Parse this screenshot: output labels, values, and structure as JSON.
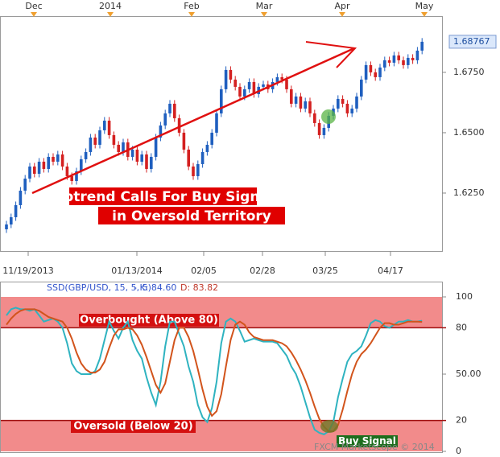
{
  "chart_data": [
    {
      "type": "candlestick",
      "top_axis_labels": [
        "Dec",
        "2014",
        "Feb",
        "Mar",
        "Apr",
        "May"
      ],
      "x_labels": [
        "11/19/2013",
        "01/13/2014",
        "02/05",
        "02/28",
        "03/25",
        "04/17"
      ],
      "open": [
        1.61,
        1.612,
        1.615,
        1.62,
        1.626,
        1.631,
        1.636,
        1.633,
        1.638,
        1.635,
        1.64,
        1.638,
        1.641,
        1.636,
        1.632,
        1.63,
        1.634,
        1.639,
        1.642,
        1.648,
        1.645,
        1.651,
        1.655,
        1.649,
        1.645,
        1.642,
        1.646,
        1.64,
        1.643,
        1.638,
        1.641,
        1.635,
        1.64,
        1.648,
        1.653,
        1.658,
        1.662,
        1.656,
        1.65,
        1.643,
        1.636,
        1.632,
        1.637,
        1.642,
        1.645,
        1.65,
        1.658,
        1.668,
        1.676,
        1.672,
        1.669,
        1.665,
        1.668,
        1.671,
        1.666,
        1.669,
        1.67,
        1.668,
        1.671,
        1.673,
        1.672,
        1.668,
        1.662,
        1.665,
        1.66,
        1.663,
        1.658,
        1.654,
        1.649,
        1.652,
        1.657,
        1.66,
        1.664,
        1.662,
        1.658,
        1.66,
        1.665,
        1.672,
        1.678,
        1.675,
        1.673,
        1.677,
        1.68,
        1.679,
        1.682,
        1.68,
        1.678,
        1.681,
        1.68,
        1.684
      ],
      "high": [
        1.6135,
        1.6165,
        1.6215,
        1.6275,
        1.6325,
        1.6375,
        1.6375,
        1.6395,
        1.6395,
        1.6415,
        1.6415,
        1.6425,
        1.6425,
        1.6375,
        1.6335,
        1.6355,
        1.6405,
        1.6435,
        1.6495,
        1.6495,
        1.6525,
        1.6565,
        1.6565,
        1.6505,
        1.6465,
        1.6475,
        1.6475,
        1.6445,
        1.6445,
        1.6425,
        1.6425,
        1.6415,
        1.6495,
        1.6545,
        1.6595,
        1.6635,
        1.6635,
        1.6575,
        1.6515,
        1.6445,
        1.6375,
        1.6385,
        1.6435,
        1.6465,
        1.6515,
        1.6595,
        1.6695,
        1.6775,
        1.6775,
        1.6735,
        1.6705,
        1.6695,
        1.6725,
        1.6725,
        1.6705,
        1.6715,
        1.6715,
        1.6725,
        1.6745,
        1.6745,
        1.6735,
        1.6695,
        1.6665,
        1.6665,
        1.6645,
        1.6645,
        1.6595,
        1.6555,
        1.6535,
        1.6585,
        1.6615,
        1.6655,
        1.6655,
        1.6635,
        1.6615,
        1.6665,
        1.6735,
        1.6795,
        1.6795,
        1.6765,
        1.6785,
        1.6815,
        1.6815,
        1.6835,
        1.6835,
        1.6815,
        1.6825,
        1.6825,
        1.6855,
        1.6892
      ],
      "low": [
        1.6085,
        1.6105,
        1.6135,
        1.6185,
        1.6245,
        1.6295,
        1.6315,
        1.6315,
        1.6335,
        1.6335,
        1.6365,
        1.6365,
        1.6345,
        1.6305,
        1.6285,
        1.6285,
        1.6325,
        1.6375,
        1.6405,
        1.6435,
        1.6435,
        1.6495,
        1.6475,
        1.6435,
        1.6405,
        1.6405,
        1.6385,
        1.6385,
        1.6365,
        1.6365,
        1.6335,
        1.6335,
        1.6385,
        1.6465,
        1.6515,
        1.6565,
        1.6545,
        1.6485,
        1.6415,
        1.6345,
        1.6305,
        1.6305,
        1.6355,
        1.6405,
        1.6435,
        1.6485,
        1.6565,
        1.6665,
        1.6705,
        1.6675,
        1.6635,
        1.6635,
        1.6665,
        1.6645,
        1.6645,
        1.6675,
        1.6665,
        1.6665,
        1.6695,
        1.6705,
        1.6665,
        1.6605,
        1.6605,
        1.6585,
        1.6585,
        1.6565,
        1.6525,
        1.6475,
        1.6475,
        1.6505,
        1.6555,
        1.6585,
        1.6605,
        1.6565,
        1.6565,
        1.6585,
        1.6635,
        1.6705,
        1.6735,
        1.6715,
        1.6715,
        1.6755,
        1.6775,
        1.6775,
        1.6785,
        1.6765,
        1.6765,
        1.6785,
        1.6785,
        1.6825
      ],
      "close": [
        1.612,
        1.615,
        1.62,
        1.626,
        1.631,
        1.636,
        1.633,
        1.638,
        1.635,
        1.64,
        1.638,
        1.641,
        1.636,
        1.632,
        1.63,
        1.634,
        1.639,
        1.642,
        1.648,
        1.645,
        1.651,
        1.655,
        1.649,
        1.645,
        1.642,
        1.646,
        1.64,
        1.643,
        1.638,
        1.641,
        1.635,
        1.64,
        1.648,
        1.653,
        1.658,
        1.662,
        1.656,
        1.65,
        1.643,
        1.636,
        1.632,
        1.637,
        1.642,
        1.645,
        1.65,
        1.658,
        1.668,
        1.676,
        1.672,
        1.669,
        1.665,
        1.668,
        1.671,
        1.666,
        1.669,
        1.67,
        1.668,
        1.671,
        1.673,
        1.672,
        1.668,
        1.662,
        1.665,
        1.66,
        1.663,
        1.658,
        1.654,
        1.649,
        1.652,
        1.657,
        1.66,
        1.664,
        1.662,
        1.658,
        1.66,
        1.665,
        1.672,
        1.678,
        1.675,
        1.673,
        1.677,
        1.68,
        1.679,
        1.682,
        1.68,
        1.678,
        1.681,
        1.68,
        1.684,
        1.68767
      ],
      "up_color": "#1f5fbf",
      "down_color": "#d42020",
      "ylim": [
        1.601,
        1.6983
      ],
      "yticks": [
        {
          "value": 1.675,
          "label": "1.6750"
        },
        {
          "value": 1.65,
          "label": "1.6500"
        },
        {
          "value": 1.625,
          "label": "1.6250"
        }
      ],
      "annotations": [
        "Uptrend Calls For Buy Signal",
        "in Oversold Territory"
      ]
    },
    {
      "type": "line",
      "title": "SSD(GBP/USD, 15, 5, 5)",
      "readouts": [
        "- K: 84.60",
        "D: 83.82"
      ],
      "series": [
        {
          "color": "#2fb3c0",
          "values": [
            88,
            92,
            93,
            92,
            92,
            91,
            92,
            88,
            84,
            85,
            86,
            84,
            80,
            70,
            57,
            52,
            50,
            50,
            50,
            52,
            60,
            72,
            84,
            78,
            73,
            80,
            84,
            72,
            65,
            60,
            48,
            38,
            30,
            45,
            68,
            84,
            84,
            76,
            68,
            55,
            45,
            30,
            22,
            19,
            28,
            45,
            70,
            84,
            86,
            84,
            78,
            71,
            72,
            73,
            72,
            71,
            71,
            71,
            70,
            66,
            62,
            55,
            50,
            42,
            32,
            22,
            14,
            12,
            11,
            13,
            19,
            35,
            47,
            58,
            63,
            65,
            68,
            75,
            83,
            85,
            84,
            81,
            80,
            82,
            84,
            84,
            85,
            84,
            84,
            84.6
          ]
        },
        {
          "color": "#d2541c",
          "values": [
            82,
            86,
            89,
            91,
            92,
            92,
            92,
            91,
            89,
            87,
            86,
            85,
            84,
            80,
            73,
            64,
            57,
            53,
            51,
            51,
            53,
            58,
            67,
            75,
            79,
            79,
            80,
            79,
            75,
            69,
            61,
            52,
            43,
            38,
            44,
            58,
            72,
            80,
            80,
            74,
            65,
            53,
            40,
            29,
            23,
            26,
            37,
            55,
            72,
            82,
            84,
            82,
            77,
            74,
            73,
            72,
            72,
            72,
            71,
            70,
            68,
            64,
            59,
            53,
            46,
            38,
            29,
            21,
            16,
            13,
            13,
            17,
            27,
            39,
            50,
            58,
            63,
            66,
            70,
            75,
            80,
            83,
            83,
            82,
            82,
            83,
            84,
            84,
            84,
            83.82
          ]
        }
      ],
      "ylim": [
        0,
        100
      ],
      "yticks": [
        100,
        80,
        {
          "value": 50,
          "label": "50.00"
        },
        20,
        0
      ],
      "zones": [
        {
          "from": 80,
          "to": 100,
          "label": "Overbought (Above 80)"
        },
        {
          "from": 0,
          "to": 20,
          "label": "Oversold (Below 20)"
        }
      ],
      "zone_color": "#f28b8b",
      "annotations": [
        "Buy Signal"
      ],
      "watermark": "FXCM Marketscope © 2014"
    }
  ]
}
